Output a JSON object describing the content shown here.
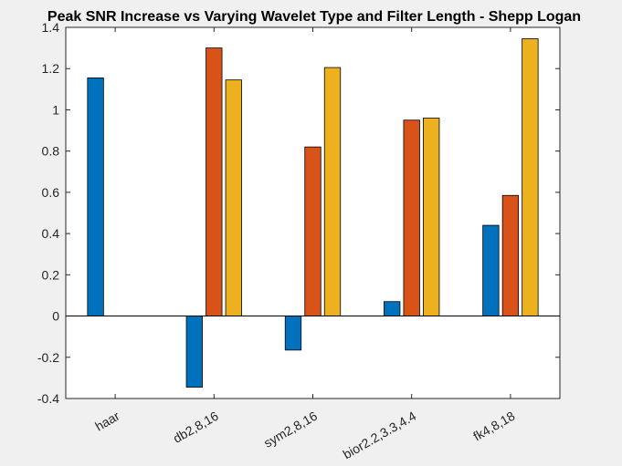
{
  "chart_data": {
    "type": "bar",
    "title": "Peak SNR Increase vs Varying Wavelet Type and Filter Length - Shepp Logan",
    "xlabel": "",
    "ylabel": "",
    "ylim": [
      -0.4,
      1.4
    ],
    "yticks": [
      "1.4",
      "1.2",
      "1",
      "0.8",
      "0.6",
      "0.4",
      "0.2",
      "0",
      "-0.2",
      "-0.4"
    ],
    "ytick_values": [
      1.4,
      1.2,
      1.0,
      0.8,
      0.6,
      0.4,
      0.2,
      0,
      -0.2,
      -0.4
    ],
    "categories": [
      "haar",
      "db2,8,16",
      "sym2,8,16",
      "bior2.2,3.3,4.4",
      "fk4,8,18"
    ],
    "series": [
      {
        "color": "#0072BD",
        "values": [
          1.155,
          -0.345,
          -0.165,
          0.07,
          0.44
        ]
      },
      {
        "color": "#D95319",
        "values": [
          0,
          1.3,
          0.82,
          0.95,
          0.585
        ]
      },
      {
        "color": "#EDB120",
        "values": [
          0,
          1.145,
          1.205,
          0.96,
          1.345
        ]
      }
    ],
    "grid": false,
    "legend": "none"
  }
}
